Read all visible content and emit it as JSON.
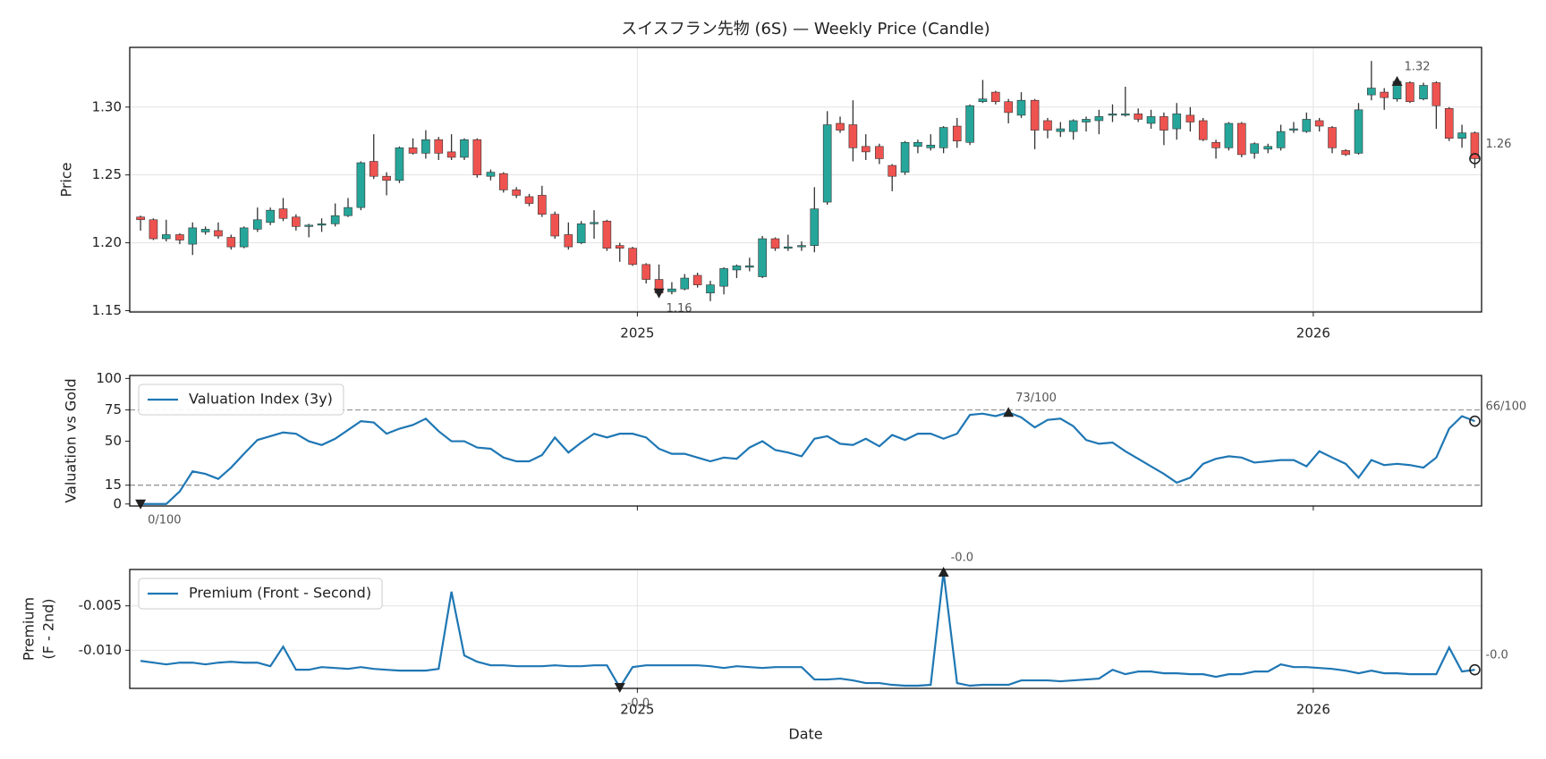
{
  "chart_data": [
    {
      "type": "candlestick",
      "title": "スイスフラン先物 (6S) — Weekly Price (Candle)",
      "ylabel": "Price",
      "up_color": "#26a69a",
      "down_color": "#ef5350",
      "wick_color": "#333333",
      "grid": true,
      "show_xtick_labels": true,
      "xlim": [
        2024.249,
        2026.249
      ],
      "xticks": [
        2025,
        2026
      ],
      "ylim": [
        1.149,
        1.344
      ],
      "yticks": [
        1.15,
        {
          "value": 1.2,
          "label": "1.20"
        },
        1.25,
        {
          "value": 1.3,
          "label": "1.30"
        }
      ],
      "x": [
        2024.265,
        2024.284,
        2024.303,
        2024.323,
        2024.342,
        2024.361,
        2024.38,
        2024.399,
        2024.418,
        2024.438,
        2024.457,
        2024.476,
        2024.495,
        2024.514,
        2024.533,
        2024.553,
        2024.572,
        2024.591,
        2024.61,
        2024.629,
        2024.648,
        2024.668,
        2024.687,
        2024.706,
        2024.725,
        2024.744,
        2024.763,
        2024.783,
        2024.802,
        2024.821,
        2024.84,
        2024.859,
        2024.878,
        2024.898,
        2024.917,
        2024.936,
        2024.955,
        2024.974,
        2024.993,
        2025.013,
        2025.032,
        2025.051,
        2025.07,
        2025.089,
        2025.108,
        2025.128,
        2025.147,
        2025.166,
        2025.185,
        2025.204,
        2025.223,
        2025.243,
        2025.262,
        2025.281,
        2025.3,
        2025.319,
        2025.338,
        2025.358,
        2025.377,
        2025.396,
        2025.415,
        2025.434,
        2025.453,
        2025.473,
        2025.492,
        2025.511,
        2025.53,
        2025.549,
        2025.568,
        2025.588,
        2025.607,
        2025.626,
        2025.645,
        2025.664,
        2025.683,
        2025.703,
        2025.722,
        2025.741,
        2025.76,
        2025.779,
        2025.798,
        2025.818,
        2025.837,
        2025.856,
        2025.875,
        2025.894,
        2025.913,
        2025.933,
        2025.952,
        2025.971,
        2025.99,
        2026.009,
        2026.028,
        2026.048,
        2026.067,
        2026.086,
        2026.105,
        2026.124,
        2026.143,
        2026.163,
        2026.182,
        2026.201,
        2026.22,
        2026.239
      ],
      "open": [
        1.219,
        1.217,
        1.203,
        1.206,
        1.199,
        1.208,
        1.209,
        1.204,
        1.197,
        1.21,
        1.215,
        1.225,
        1.219,
        1.212,
        1.213,
        1.214,
        1.22,
        1.226,
        1.26,
        1.249,
        1.246,
        1.27,
        1.266,
        1.276,
        1.267,
        1.263,
        1.276,
        1.249,
        1.251,
        1.239,
        1.234,
        1.235,
        1.221,
        1.206,
        1.2,
        1.214,
        1.216,
        1.198,
        1.196,
        1.184,
        1.173,
        1.164,
        1.166,
        1.176,
        1.163,
        1.168,
        1.18,
        1.182,
        1.175,
        1.203,
        1.196,
        1.197,
        1.198,
        1.23,
        1.288,
        1.287,
        1.271,
        1.271,
        1.257,
        1.252,
        1.271,
        1.27,
        1.27,
        1.286,
        1.274,
        1.304,
        1.311,
        1.304,
        1.294,
        1.305,
        1.29,
        1.282,
        1.282,
        1.289,
        1.29,
        1.294,
        1.294,
        1.295,
        1.288,
        1.293,
        1.284,
        1.294,
        1.29,
        1.274,
        1.27,
        1.288,
        1.266,
        1.269,
        1.27,
        1.283,
        1.282,
        1.29,
        1.285,
        1.268,
        1.266,
        1.309,
        1.311,
        1.306,
        1.318,
        1.306,
        1.318,
        1.299,
        1.277,
        1.281
      ],
      "high": [
        1.22,
        1.218,
        1.217,
        1.207,
        1.215,
        1.212,
        1.215,
        1.206,
        1.212,
        1.226,
        1.226,
        1.233,
        1.221,
        1.214,
        1.218,
        1.229,
        1.233,
        1.26,
        1.28,
        1.252,
        1.271,
        1.277,
        1.283,
        1.278,
        1.28,
        1.277,
        1.277,
        1.254,
        1.252,
        1.241,
        1.236,
        1.242,
        1.223,
        1.215,
        1.216,
        1.224,
        1.217,
        1.2,
        1.197,
        1.185,
        1.184,
        1.171,
        1.177,
        1.178,
        1.172,
        1.182,
        1.184,
        1.189,
        1.205,
        1.204,
        1.206,
        1.201,
        1.241,
        1.297,
        1.293,
        1.305,
        1.28,
        1.273,
        1.258,
        1.275,
        1.276,
        1.28,
        1.286,
        1.292,
        1.302,
        1.32,
        1.312,
        1.306,
        1.311,
        1.306,
        1.292,
        1.289,
        1.291,
        1.293,
        1.298,
        1.302,
        1.315,
        1.299,
        1.298,
        1.296,
        1.303,
        1.3,
        1.292,
        1.276,
        1.289,
        1.289,
        1.274,
        1.273,
        1.287,
        1.289,
        1.296,
        1.292,
        1.286,
        1.269,
        1.303,
        1.334,
        1.314,
        1.321,
        1.319,
        1.318,
        1.319,
        1.3,
        1.287,
        1.282
      ],
      "low": [
        1.209,
        1.202,
        1.201,
        1.199,
        1.191,
        1.206,
        1.203,
        1.195,
        1.196,
        1.208,
        1.213,
        1.216,
        1.209,
        1.204,
        1.208,
        1.212,
        1.219,
        1.224,
        1.247,
        1.235,
        1.244,
        1.265,
        1.262,
        1.261,
        1.261,
        1.261,
        1.248,
        1.246,
        1.237,
        1.233,
        1.227,
        1.219,
        1.203,
        1.195,
        1.199,
        1.203,
        1.194,
        1.186,
        1.183,
        1.17,
        1.16,
        1.162,
        1.165,
        1.167,
        1.157,
        1.162,
        1.174,
        1.179,
        1.174,
        1.194,
        1.194,
        1.194,
        1.193,
        1.228,
        1.281,
        1.26,
        1.261,
        1.258,
        1.238,
        1.25,
        1.266,
        1.268,
        1.266,
        1.27,
        1.272,
        1.303,
        1.302,
        1.288,
        1.292,
        1.269,
        1.277,
        1.278,
        1.276,
        1.282,
        1.28,
        1.289,
        1.293,
        1.289,
        1.284,
        1.272,
        1.276,
        1.282,
        1.275,
        1.262,
        1.268,
        1.263,
        1.262,
        1.266,
        1.268,
        1.281,
        1.281,
        1.282,
        1.266,
        1.264,
        1.265,
        1.305,
        1.298,
        1.304,
        1.303,
        1.305,
        1.284,
        1.275,
        1.27,
        1.255
      ],
      "close": [
        1.217,
        1.203,
        1.206,
        1.202,
        1.211,
        1.21,
        1.205,
        1.197,
        1.211,
        1.217,
        1.224,
        1.218,
        1.212,
        1.213,
        1.214,
        1.22,
        1.226,
        1.259,
        1.249,
        1.246,
        1.27,
        1.266,
        1.276,
        1.266,
        1.263,
        1.276,
        1.25,
        1.252,
        1.239,
        1.235,
        1.229,
        1.221,
        1.205,
        1.197,
        1.214,
        1.215,
        1.196,
        1.196,
        1.184,
        1.173,
        1.163,
        1.166,
        1.174,
        1.169,
        1.169,
        1.181,
        1.183,
        1.183,
        1.203,
        1.196,
        1.197,
        1.198,
        1.225,
        1.287,
        1.283,
        1.27,
        1.267,
        1.262,
        1.249,
        1.274,
        1.274,
        1.272,
        1.285,
        1.275,
        1.301,
        1.306,
        1.304,
        1.296,
        1.305,
        1.283,
        1.283,
        1.284,
        1.29,
        1.291,
        1.293,
        1.295,
        1.295,
        1.291,
        1.293,
        1.283,
        1.295,
        1.289,
        1.276,
        1.27,
        1.288,
        1.265,
        1.273,
        1.271,
        1.282,
        1.284,
        1.291,
        1.286,
        1.27,
        1.265,
        1.298,
        1.314,
        1.307,
        1.319,
        1.304,
        1.316,
        1.301,
        1.277,
        1.281,
        1.262
      ],
      "annotations": [
        {
          "x": 2026.124,
          "value": 1.319,
          "label": "1.32",
          "marker": "triangle-up"
        },
        {
          "x": 2025.032,
          "value": 1.163,
          "label": "1.16",
          "marker": "triangle-down"
        },
        {
          "x": 2026.239,
          "value": 1.262,
          "label": "1.26",
          "marker": "circle"
        }
      ]
    },
    {
      "type": "line",
      "ylabel": "Valuation vs Gold",
      "grid": false,
      "show_xtick_labels": false,
      "legend": "upper left",
      "xlim": [
        2024.249,
        2026.249
      ],
      "xticks": [
        2025,
        2026
      ],
      "ylim": [
        -1.6,
        102.4
      ],
      "yticks": [
        0,
        15,
        50,
        75,
        100
      ],
      "reference_lines": [
        15,
        75
      ],
      "x": [
        2024.265,
        2024.284,
        2024.303,
        2024.323,
        2024.342,
        2024.361,
        2024.38,
        2024.399,
        2024.418,
        2024.438,
        2024.457,
        2024.476,
        2024.495,
        2024.514,
        2024.533,
        2024.553,
        2024.572,
        2024.591,
        2024.61,
        2024.629,
        2024.648,
        2024.668,
        2024.687,
        2024.706,
        2024.725,
        2024.744,
        2024.763,
        2024.783,
        2024.802,
        2024.821,
        2024.84,
        2024.859,
        2024.878,
        2024.898,
        2024.917,
        2024.936,
        2024.955,
        2024.974,
        2024.993,
        2025.013,
        2025.032,
        2025.051,
        2025.07,
        2025.089,
        2025.108,
        2025.128,
        2025.147,
        2025.166,
        2025.185,
        2025.204,
        2025.223,
        2025.243,
        2025.262,
        2025.281,
        2025.3,
        2025.319,
        2025.338,
        2025.358,
        2025.377,
        2025.396,
        2025.415,
        2025.434,
        2025.453,
        2025.473,
        2025.492,
        2025.511,
        2025.53,
        2025.549,
        2025.568,
        2025.588,
        2025.607,
        2025.626,
        2025.645,
        2025.664,
        2025.683,
        2025.703,
        2025.722,
        2025.741,
        2025.76,
        2025.779,
        2025.798,
        2025.818,
        2025.837,
        2025.856,
        2025.875,
        2025.894,
        2025.913,
        2025.933,
        2025.952,
        2025.971,
        2025.99,
        2026.009,
        2026.028,
        2026.048,
        2026.067,
        2026.086,
        2026.105,
        2026.124,
        2026.143,
        2026.163,
        2026.182,
        2026.201,
        2026.22,
        2026.239
      ],
      "series": [
        {
          "name": "Valuation Index (3y)",
          "color": "#1f77b4",
          "values": [
            0,
            0,
            0,
            10,
            26,
            24,
            20,
            29,
            40,
            51,
            54,
            57,
            56,
            50,
            47,
            52,
            59,
            66,
            65,
            56,
            60,
            63,
            68,
            58,
            50,
            50,
            45,
            44,
            37,
            34,
            34,
            39,
            53,
            41,
            49,
            56,
            53,
            56,
            56,
            53,
            44,
            40,
            40,
            37,
            34,
            37,
            36,
            45,
            50,
            43,
            41,
            38,
            52,
            54,
            48,
            47,
            52,
            46,
            55,
            51,
            56,
            56,
            52,
            56,
            71,
            72,
            70,
            73,
            69,
            61,
            67,
            68,
            62,
            51,
            48,
            49,
            42,
            36,
            30,
            24,
            17,
            21,
            32,
            36,
            38,
            37,
            33,
            34,
            35,
            35,
            30,
            42,
            37,
            32,
            21,
            35,
            31,
            32,
            31,
            29,
            37,
            60,
            70,
            66
          ]
        }
      ],
      "annotations": [
        {
          "x": 2025.549,
          "value": 73,
          "label": "73/100",
          "marker": "triangle-up"
        },
        {
          "x": 2024.265,
          "value": 0,
          "label": "0/100",
          "marker": "triangle-down"
        },
        {
          "x": 2026.239,
          "value": 66,
          "label": "66/100",
          "marker": "circle"
        }
      ]
    },
    {
      "type": "line",
      "ylabel": [
        "Premium",
        "(F - 2nd)"
      ],
      "xlabel": "Date",
      "grid": true,
      "show_xtick_labels": true,
      "legend": "upper left",
      "xlim": [
        2024.249,
        2026.249
      ],
      "xticks": [
        2025,
        2026
      ],
      "ylim": [
        -0.0143,
        -0.0009
      ],
      "yticks": [
        -0.005,
        {
          "value": -0.01,
          "label": "-0.010"
        }
      ],
      "x": [
        2024.265,
        2024.284,
        2024.303,
        2024.323,
        2024.342,
        2024.361,
        2024.38,
        2024.399,
        2024.418,
        2024.438,
        2024.457,
        2024.476,
        2024.495,
        2024.514,
        2024.533,
        2024.553,
        2024.572,
        2024.591,
        2024.61,
        2024.629,
        2024.648,
        2024.668,
        2024.687,
        2024.706,
        2024.725,
        2024.744,
        2024.763,
        2024.783,
        2024.802,
        2024.821,
        2024.84,
        2024.859,
        2024.878,
        2024.898,
        2024.917,
        2024.936,
        2024.955,
        2024.974,
        2024.993,
        2025.013,
        2025.032,
        2025.051,
        2025.07,
        2025.089,
        2025.108,
        2025.128,
        2025.147,
        2025.166,
        2025.185,
        2025.204,
        2025.223,
        2025.243,
        2025.262,
        2025.281,
        2025.3,
        2025.319,
        2025.338,
        2025.358,
        2025.377,
        2025.396,
        2025.415,
        2025.434,
        2025.453,
        2025.473,
        2025.492,
        2025.511,
        2025.53,
        2025.549,
        2025.568,
        2025.588,
        2025.607,
        2025.626,
        2025.645,
        2025.664,
        2025.683,
        2025.703,
        2025.722,
        2025.741,
        2025.76,
        2025.779,
        2025.798,
        2025.818,
        2025.837,
        2025.856,
        2025.875,
        2025.894,
        2025.913,
        2025.933,
        2025.952,
        2025.971,
        2025.99,
        2026.009,
        2026.028,
        2026.048,
        2026.067,
        2026.086,
        2026.105,
        2026.124,
        2026.143,
        2026.163,
        2026.182,
        2026.201,
        2026.22,
        2026.239
      ],
      "series": [
        {
          "name": "Premium (Front - Second)",
          "color": "#1f77b4",
          "values": [
            -0.0112,
            -0.0114,
            -0.0116,
            -0.0114,
            -0.0114,
            -0.0116,
            -0.0114,
            -0.0113,
            -0.0114,
            -0.0114,
            -0.0118,
            -0.0096,
            -0.0122,
            -0.0122,
            -0.0119,
            -0.012,
            -0.0121,
            -0.0119,
            -0.0121,
            -0.0122,
            -0.0123,
            -0.0123,
            -0.0123,
            -0.0121,
            -0.0034,
            -0.0106,
            -0.0113,
            -0.0117,
            -0.0117,
            -0.0118,
            -0.0118,
            -0.0118,
            -0.0117,
            -0.0118,
            -0.0118,
            -0.0117,
            -0.0117,
            -0.0142,
            -0.0119,
            -0.0117,
            -0.0117,
            -0.0117,
            -0.0117,
            -0.0117,
            -0.0118,
            -0.012,
            -0.0118,
            -0.0119,
            -0.012,
            -0.0119,
            -0.0119,
            -0.0119,
            -0.0133,
            -0.0133,
            -0.0132,
            -0.0134,
            -0.0137,
            -0.0137,
            -0.0139,
            -0.014,
            -0.014,
            -0.0139,
            -0.0012,
            -0.0137,
            -0.014,
            -0.0139,
            -0.0139,
            -0.0139,
            -0.0134,
            -0.0134,
            -0.0134,
            -0.0135,
            -0.0134,
            -0.0133,
            -0.0132,
            -0.0122,
            -0.0127,
            -0.0124,
            -0.0124,
            -0.0126,
            -0.0126,
            -0.0127,
            -0.0127,
            -0.013,
            -0.0127,
            -0.0127,
            -0.0124,
            -0.0124,
            -0.0116,
            -0.0119,
            -0.0119,
            -0.012,
            -0.0121,
            -0.0123,
            -0.0126,
            -0.0123,
            -0.0126,
            -0.0126,
            -0.0127,
            -0.0127,
            -0.0127,
            -0.0097,
            -0.0124,
            -0.0122
          ]
        }
      ],
      "annotations": [
        {
          "x": 2025.453,
          "value": -0.0012,
          "label": "-0.0",
          "marker": "triangle-up"
        },
        {
          "x": 2024.974,
          "value": -0.0142,
          "label": "-0.0",
          "marker": "triangle-down"
        },
        {
          "x": 2026.239,
          "value": -0.0122,
          "label": "-0.0",
          "marker": "circle"
        }
      ]
    }
  ]
}
